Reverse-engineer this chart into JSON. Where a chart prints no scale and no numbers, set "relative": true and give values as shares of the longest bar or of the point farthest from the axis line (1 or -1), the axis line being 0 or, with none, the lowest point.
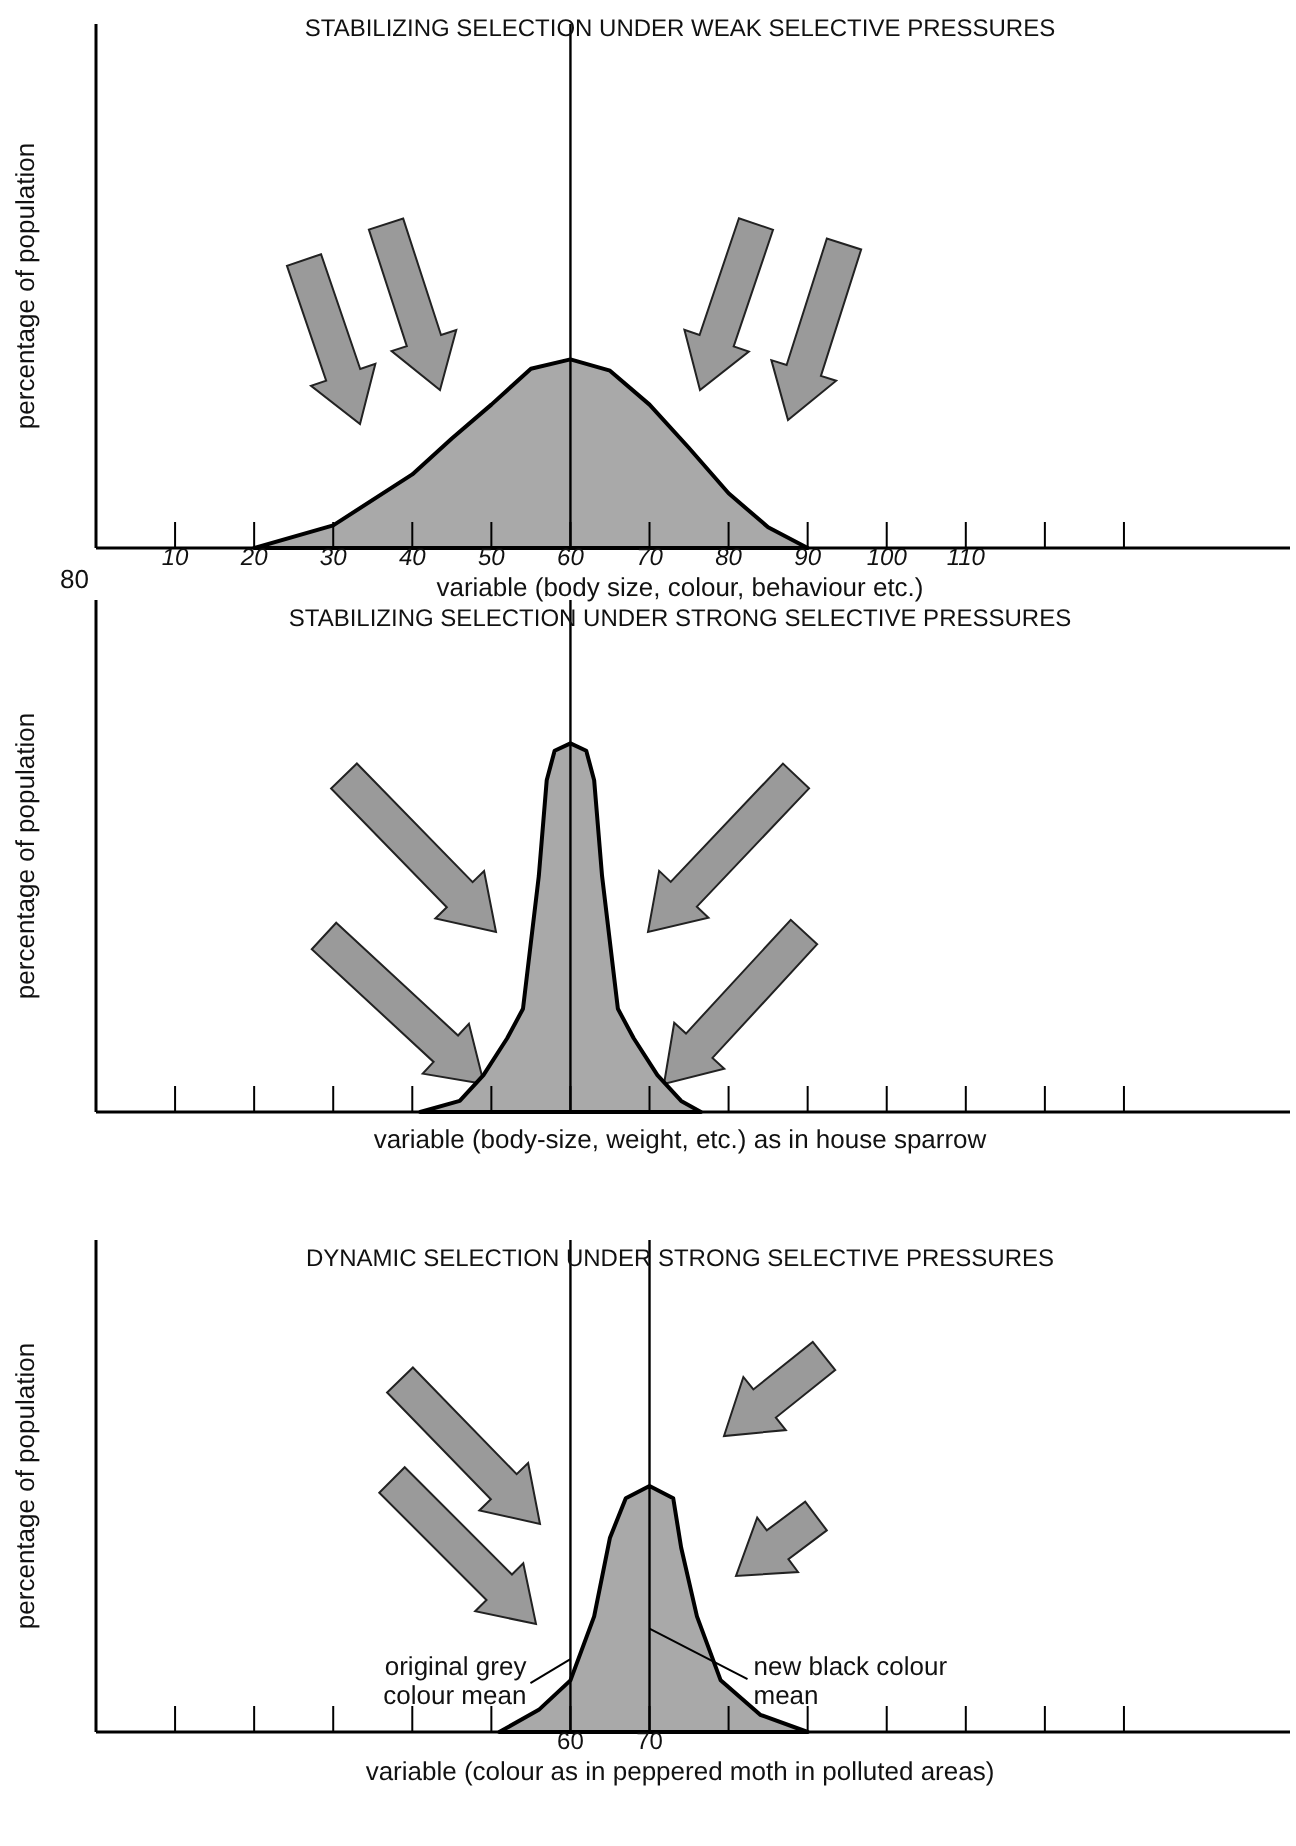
{
  "chart_data": [
    {
      "type": "area",
      "title": "STABILIZING SELECTION UNDER WEAK SELECTIVE PRESSURES",
      "xlabel": "variable (body size, colour, behaviour etc.)",
      "ylabel": "percentage of population",
      "relative": true,
      "xlim": [
        0,
        151
      ],
      "xticks": [
        10,
        20,
        30,
        40,
        50,
        60,
        70,
        80,
        90,
        100,
        110,
        {
          "value": 120,
          "label": null
        },
        {
          "value": 130,
          "label": null
        }
      ],
      "x": [
        20,
        30,
        40,
        45,
        50,
        55,
        60,
        65,
        70,
        75,
        80,
        85,
        90
      ],
      "series": [
        {
          "color": "#a9a9a9",
          "values": [
            0,
            0.12,
            0.39,
            0.58,
            0.76,
            0.95,
            1,
            0.94,
            0.76,
            0.53,
            0.29,
            0.11,
            0
          ]
        }
      ],
      "ref_lines": [
        {
          "axis": "x",
          "value": 60
        }
      ],
      "annotations": [
        "80"
      ]
    },
    {
      "type": "area",
      "title": "STABILIZING SELECTION UNDER STRONG SELECTIVE PRESSURES",
      "xlabel": "variable (body-size, weight, etc.) as in house sparrow",
      "ylabel": "percentage of population",
      "relative": true,
      "xlim": [
        0,
        151
      ],
      "tick_labels": false,
      "xticks": [
        10,
        20,
        30,
        40,
        50,
        60,
        70,
        80,
        90,
        100,
        110,
        120,
        130
      ],
      "x": [
        41,
        46,
        49,
        52,
        54,
        56,
        57,
        58,
        60,
        62,
        63,
        64,
        66,
        68,
        71,
        74,
        76.5
      ],
      "series": [
        {
          "color": "#a9a9a9",
          "values": [
            0,
            0.03,
            0.1,
            0.2,
            0.28,
            0.64,
            0.9,
            0.98,
            1,
            0.98,
            0.9,
            0.64,
            0.28,
            0.2,
            0.1,
            0.03,
            0
          ]
        }
      ],
      "ref_lines": [
        {
          "axis": "x",
          "value": 60
        }
      ]
    },
    {
      "type": "area",
      "title": "DYNAMIC SELECTION UNDER STRONG SELECTIVE PRESSURES",
      "xlabel": "variable (colour as in peppered moth in polluted areas)",
      "ylabel": "percentage of population",
      "relative": true,
      "xlim": [
        0,
        151
      ],
      "xticks": [
        {
          "value": 10,
          "label": null
        },
        {
          "value": 20,
          "label": null
        },
        {
          "value": 30,
          "label": null
        },
        {
          "value": 40,
          "label": null
        },
        {
          "value": 50,
          "label": null
        },
        60,
        70,
        {
          "value": 80,
          "label": null
        },
        {
          "value": 90,
          "label": null
        },
        {
          "value": 100,
          "label": null
        },
        {
          "value": 110,
          "label": null
        },
        {
          "value": 120,
          "label": null
        },
        {
          "value": 130,
          "label": null
        }
      ],
      "x": [
        51,
        56,
        60,
        63,
        65,
        67,
        70,
        73,
        74,
        76,
        79,
        84,
        90
      ],
      "series": [
        {
          "color": "#a9a9a9",
          "values": [
            0,
            0.09,
            0.21,
            0.47,
            0.79,
            0.95,
            1,
            0.95,
            0.75,
            0.47,
            0.21,
            0.07,
            0
          ]
        }
      ],
      "ref_lines": [
        {
          "axis": "x",
          "value": 60,
          "label": "original grey colour mean"
        },
        {
          "axis": "x",
          "value": 70,
          "label": "new black colour mean"
        }
      ]
    }
  ]
}
